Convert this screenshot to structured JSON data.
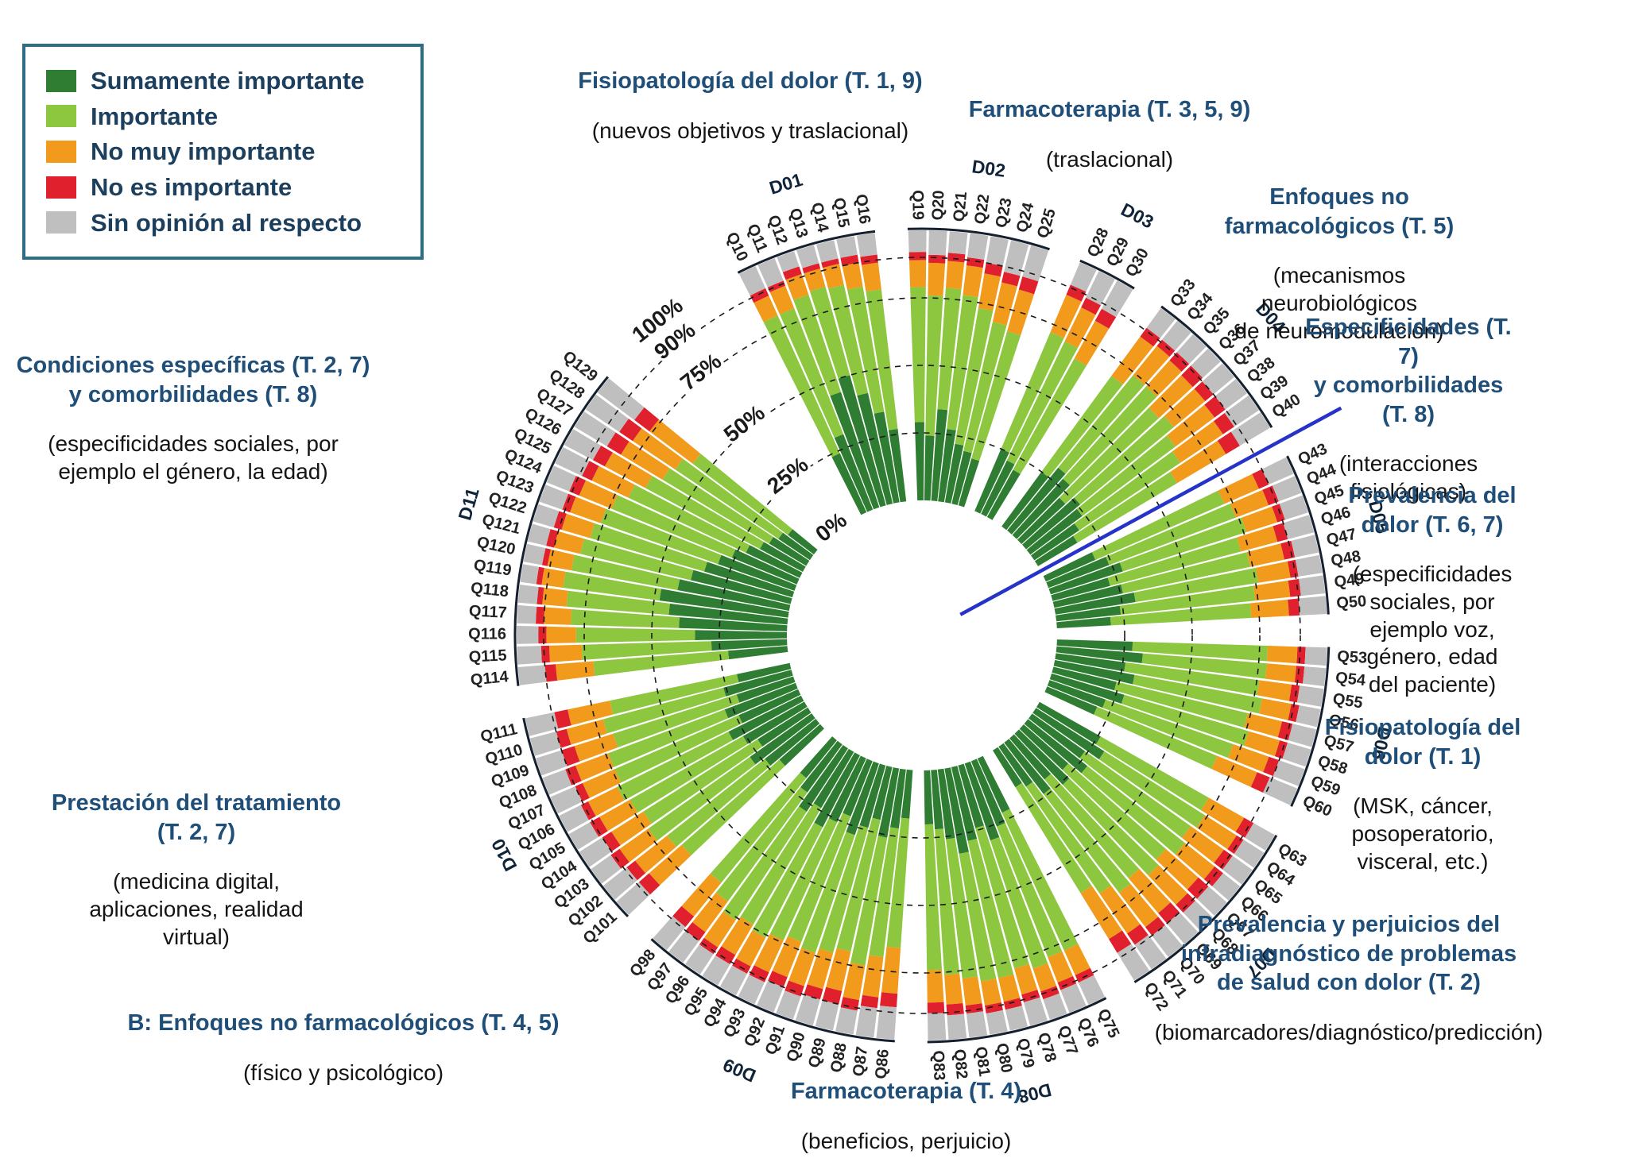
{
  "legend": {
    "items": [
      {
        "label": "Sumamente importante",
        "color": "#2e7d32"
      },
      {
        "label": "Importante",
        "color": "#8dc63f"
      },
      {
        "label": "No muy importante",
        "color": "#f29a1b"
      },
      {
        "label": "No es importante",
        "color": "#e0202d"
      },
      {
        "label": "Sin opinión al respecto",
        "color": "#bfbfbf"
      }
    ]
  },
  "annotations": [
    {
      "title": "Fisiopatología del dolor (T. 1, 9)",
      "subtitle": "(nuevos objetivos y traslacional)"
    },
    {
      "title": "Farmacoterapia (T. 3, 5, 9)",
      "subtitle": "(traslacional)"
    },
    {
      "title": "Enfoques no farmacológicos (T. 5)",
      "subtitle": "(mecanismos neurobiológicos\nde neuromodulación)"
    },
    {
      "title": "Especificidades (T. 7)\ny comorbilidades (T. 8)",
      "subtitle": "(interacciones fisiológicas)"
    },
    {
      "title": "Prevalencia del dolor (T. 6, 7)",
      "subtitle": "(especificidades sociales, por\nejemplo voz, género, edad\ndel paciente)"
    },
    {
      "title": "Fisiopatología del dolor (T. 1)",
      "subtitle": "(MSK, cáncer, posoperatorio,\nvisceral, etc.)"
    },
    {
      "title": "Prevalencia y perjuicios del\ninfradiagnóstico de problemas\nde salud con dolor (T. 2)",
      "subtitle": "(biomarcadores/diagnóstico/predicción)"
    },
    {
      "title": "Farmacoterapia (T. 4)",
      "subtitle": "(beneficios, perjuicio)"
    },
    {
      "title": "B: Enfoques no farmacológicos (T. 4, 5)",
      "subtitle": "(físico y psicológico)"
    },
    {
      "title": "Prestación del tratamiento\n(T. 2, 7)",
      "subtitle": "(medicina digital,\naplicaciones, realidad\nvirtual)"
    },
    {
      "title": "Condiciones específicas (T. 2, 7)\ny comorbilidades (T. 8)",
      "subtitle": "(especificidades sociales, por\nejemplo el género, la edad)"
    }
  ],
  "chart_data": {
    "type": "radial-stacked-bar",
    "stack_order": [
      "sumamente_importante",
      "importante",
      "no_muy_importante",
      "no_es_importante",
      "sin_opinion"
    ],
    "colors": [
      "#2e7d32",
      "#8dc63f",
      "#f29a1b",
      "#e0202d",
      "#bfbfbf"
    ],
    "scale_ticks": [
      0,
      25,
      50,
      75,
      90,
      100
    ],
    "scale_tick_labels": [
      "0%",
      "25%",
      "50%",
      "75%",
      "90%",
      "100%"
    ],
    "rlim": [
      0,
      100
    ],
    "units": "percent of respondents per question (stacked to 100%)",
    "highlight_marker": {
      "color": "#2633c9",
      "position": "radial line between Q40 (D04) and Q43 (D05)"
    },
    "domains": [
      {
        "id": "D01",
        "questions": [
          "Q10",
          "Q11",
          "Q12",
          "Q13",
          "Q14",
          "Q15",
          "Q16"
        ],
        "values": [
          [
            24,
            56,
            8,
            3,
            9
          ],
          [
            30,
            50,
            9,
            2,
            9
          ],
          [
            45,
            38,
            8,
            3,
            6
          ],
          [
            50,
            34,
            7,
            2,
            7
          ],
          [
            42,
            41,
            8,
            2,
            7
          ],
          [
            34,
            47,
            9,
            3,
            7
          ],
          [
            27,
            52,
            10,
            3,
            8
          ]
        ]
      },
      {
        "id": "D02",
        "questions": [
          "Q19",
          "Q20",
          "Q21",
          "Q22",
          "Q23",
          "Q24",
          "Q25"
        ],
        "values": [
          [
            29,
            50,
            10,
            3,
            8
          ],
          [
            24,
            52,
            12,
            3,
            9
          ],
          [
            34,
            45,
            10,
            3,
            8
          ],
          [
            27,
            50,
            11,
            3,
            9
          ],
          [
            22,
            51,
            13,
            4,
            10
          ],
          [
            20,
            49,
            15,
            4,
            12
          ],
          [
            18,
            49,
            16,
            5,
            12
          ]
        ]
      },
      {
        "id": "D03",
        "questions": [
          "Q28",
          "Q29",
          "Q30"
        ],
        "values": [
          [
            25,
            47,
            15,
            4,
            9
          ],
          [
            22,
            49,
            14,
            4,
            11
          ],
          [
            20,
            47,
            16,
            5,
            12
          ]
        ]
      },
      {
        "id": "D04",
        "questions": [
          "Q33",
          "Q34",
          "Q35",
          "Q36",
          "Q37",
          "Q38",
          "Q39",
          "Q40"
        ],
        "values": [
          [
            25,
            44,
            18,
            4,
            9
          ],
          [
            30,
            44,
            14,
            3,
            9
          ],
          [
            28,
            46,
            13,
            4,
            9
          ],
          [
            22,
            47,
            17,
            5,
            9
          ],
          [
            26,
            45,
            15,
            4,
            10
          ],
          [
            24,
            43,
            18,
            5,
            10
          ],
          [
            20,
            45,
            19,
            5,
            11
          ],
          [
            17,
            43,
            21,
            6,
            13
          ]
        ]
      },
      {
        "id": "D05",
        "questions": [
          "Q43",
          "Q44",
          "Q45",
          "Q46",
          "Q47",
          "Q48",
          "Q49",
          "Q50"
        ],
        "values": [
          [
            20,
            52,
            14,
            4,
            10
          ],
          [
            24,
            50,
            13,
            4,
            9
          ],
          [
            28,
            48,
            12,
            3,
            9
          ],
          [
            22,
            50,
            14,
            4,
            10
          ],
          [
            26,
            48,
            13,
            4,
            9
          ],
          [
            30,
            46,
            12,
            3,
            9
          ],
          [
            24,
            50,
            13,
            4,
            9
          ],
          [
            20,
            52,
            14,
            4,
            10
          ]
        ]
      },
      {
        "id": "D06",
        "questions": [
          "Q53",
          "Q54",
          "Q55",
          "Q56",
          "Q57",
          "Q58",
          "Q59",
          "Q60"
        ],
        "values": [
          [
            28,
            50,
            11,
            3,
            8
          ],
          [
            32,
            46,
            11,
            3,
            8
          ],
          [
            26,
            50,
            12,
            3,
            9
          ],
          [
            30,
            48,
            11,
            3,
            8
          ],
          [
            24,
            50,
            13,
            4,
            9
          ],
          [
            28,
            48,
            12,
            3,
            9
          ],
          [
            22,
            50,
            14,
            4,
            10
          ],
          [
            20,
            48,
            16,
            5,
            11
          ]
        ]
      },
      {
        "id": "D07",
        "questions": [
          "Q63",
          "Q64",
          "Q65",
          "Q66",
          "Q67",
          "Q68",
          "Q69",
          "Q70",
          "Q71",
          "Q72"
        ],
        "values": [
          [
            26,
            46,
            15,
            4,
            9
          ],
          [
            30,
            44,
            14,
            3,
            9
          ],
          [
            24,
            48,
            15,
            4,
            9
          ],
          [
            28,
            46,
            14,
            4,
            8
          ],
          [
            22,
            48,
            16,
            5,
            9
          ],
          [
            26,
            46,
            15,
            4,
            9
          ],
          [
            20,
            48,
            17,
            5,
            10
          ],
          [
            24,
            46,
            16,
            4,
            10
          ],
          [
            18,
            48,
            18,
            5,
            11
          ],
          [
            16,
            46,
            20,
            6,
            12
          ]
        ]
      },
      {
        "id": "D08",
        "questions": [
          "Q75",
          "Q76",
          "Q77",
          "Q78",
          "Q79",
          "Q80",
          "Q81",
          "Q82",
          "Q83"
        ],
        "values": [
          [
            22,
            56,
            10,
            3,
            9
          ],
          [
            26,
            52,
            10,
            3,
            9
          ],
          [
            30,
            50,
            9,
            3,
            8
          ],
          [
            24,
            54,
            10,
            3,
            9
          ],
          [
            28,
            52,
            9,
            3,
            8
          ],
          [
            32,
            48,
            9,
            3,
            8
          ],
          [
            26,
            52,
            10,
            3,
            9
          ],
          [
            22,
            54,
            11,
            4,
            9
          ],
          [
            20,
            54,
            12,
            4,
            10
          ]
        ]
      },
      {
        "id": "D09",
        "questions": [
          "Q86",
          "Q87",
          "Q88",
          "Q89",
          "Q90",
          "Q91",
          "Q92",
          "Q93",
          "Q94",
          "Q95",
          "Q96",
          "Q97",
          "Q98"
        ],
        "values": [
          [
            18,
            48,
            17,
            5,
            12
          ],
          [
            22,
            48,
            15,
            4,
            11
          ],
          [
            26,
            48,
            13,
            4,
            9
          ],
          [
            20,
            50,
            15,
            5,
            10
          ],
          [
            24,
            48,
            14,
            4,
            10
          ],
          [
            28,
            46,
            13,
            4,
            9
          ],
          [
            22,
            50,
            14,
            4,
            10
          ],
          [
            26,
            48,
            13,
            4,
            9
          ],
          [
            30,
            46,
            12,
            3,
            9
          ],
          [
            24,
            50,
            13,
            4,
            9
          ],
          [
            28,
            48,
            12,
            3,
            9
          ],
          [
            22,
            50,
            14,
            4,
            10
          ],
          [
            18,
            50,
            16,
            5,
            11
          ]
        ]
      },
      {
        "id": "D10",
        "questions": [
          "Q101",
          "Q102",
          "Q103",
          "Q104",
          "Q105",
          "Q106",
          "Q107",
          "Q108",
          "Q109",
          "Q110",
          "Q111"
        ],
        "values": [
          [
            20,
            48,
            16,
            5,
            11
          ],
          [
            24,
            46,
            15,
            4,
            11
          ],
          [
            28,
            46,
            13,
            4,
            9
          ],
          [
            22,
            50,
            14,
            4,
            10
          ],
          [
            26,
            48,
            13,
            4,
            9
          ],
          [
            30,
            46,
            12,
            3,
            9
          ],
          [
            24,
            50,
            13,
            3,
            10
          ],
          [
            28,
            46,
            13,
            4,
            9
          ],
          [
            22,
            48,
            15,
            5,
            10
          ],
          [
            26,
            46,
            14,
            4,
            10
          ],
          [
            20,
            48,
            16,
            5,
            11
          ]
        ]
      },
      {
        "id": "D11",
        "questions": [
          "Q114",
          "Q115",
          "Q116",
          "Q117",
          "Q118",
          "Q119",
          "Q120",
          "Q121",
          "Q122",
          "Q123",
          "Q124",
          "Q125",
          "Q126",
          "Q127",
          "Q128",
          "Q129"
        ],
        "values": [
          [
            22,
            50,
            14,
            4,
            10
          ],
          [
            28,
            48,
            12,
            3,
            9
          ],
          [
            34,
            44,
            11,
            3,
            8
          ],
          [
            40,
            40,
            10,
            3,
            7
          ],
          [
            44,
            38,
            9,
            2,
            7
          ],
          [
            48,
            36,
            8,
            2,
            6
          ],
          [
            42,
            40,
            9,
            2,
            7
          ],
          [
            38,
            42,
            10,
            3,
            7
          ],
          [
            34,
            44,
            11,
            3,
            8
          ],
          [
            30,
            46,
            12,
            3,
            9
          ],
          [
            26,
            48,
            13,
            4,
            9
          ],
          [
            22,
            48,
            15,
            4,
            11
          ],
          [
            18,
            48,
            17,
            5,
            12
          ],
          [
            16,
            46,
            18,
            6,
            14
          ],
          [
            14,
            46,
            19,
            6,
            15
          ],
          [
            12,
            44,
            20,
            7,
            17
          ]
        ]
      }
    ]
  }
}
